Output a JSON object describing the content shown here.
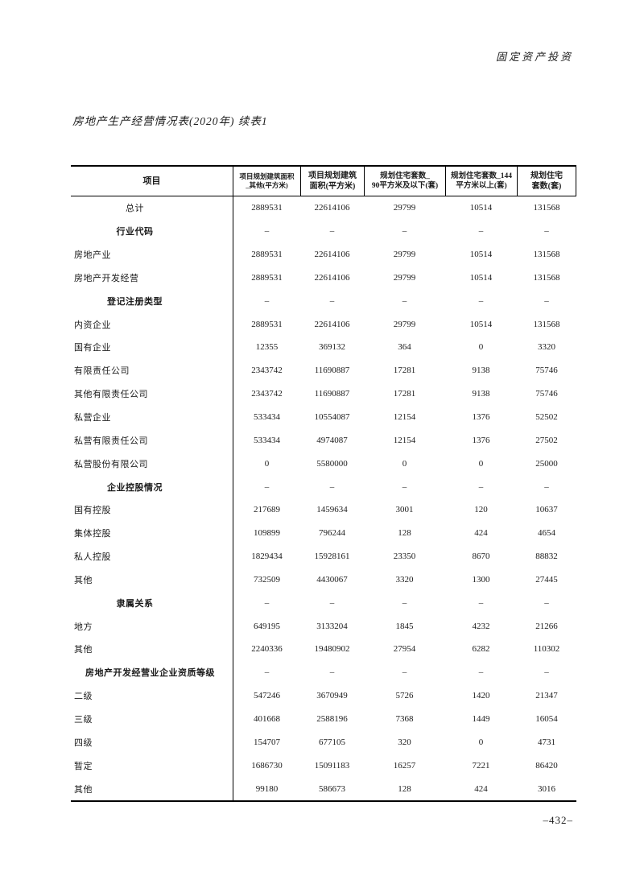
{
  "page": {
    "header_right": "固定资产投资",
    "title": "房地产生产经营情况表(2020年) 续表1",
    "page_number": "–432–"
  },
  "table": {
    "columns": [
      {
        "line1": "项目",
        "line2": ""
      },
      {
        "line1": "项目规划建筑面积",
        "line2": "_其他(平方米)"
      },
      {
        "line1": "项目规划建筑",
        "line2": "面积(平方米)"
      },
      {
        "line1": "规划住宅套数_",
        "line2": "90平方米及以下(套)"
      },
      {
        "line1": "规划住宅套数_144",
        "line2": "平方米以上(套)"
      },
      {
        "line1": "规划住宅",
        "line2": "套数(套)"
      }
    ],
    "rows": [
      {
        "label": "总计",
        "style": "center",
        "values": [
          "2889531",
          "22614106",
          "29799",
          "10514",
          "131568"
        ]
      },
      {
        "label": "行业代码",
        "style": "section",
        "values": [
          "–",
          "–",
          "–",
          "–",
          "–"
        ]
      },
      {
        "label": "房地产业",
        "style": "item",
        "values": [
          "2889531",
          "22614106",
          "29799",
          "10514",
          "131568"
        ]
      },
      {
        "label": "房地产开发经营",
        "style": "item",
        "values": [
          "2889531",
          "22614106",
          "29799",
          "10514",
          "131568"
        ]
      },
      {
        "label": "登记注册类型",
        "style": "section",
        "values": [
          "–",
          "–",
          "–",
          "–",
          "–"
        ]
      },
      {
        "label": "内资企业",
        "style": "item",
        "values": [
          "2889531",
          "22614106",
          "29799",
          "10514",
          "131568"
        ]
      },
      {
        "label": "国有企业",
        "style": "item",
        "values": [
          "12355",
          "369132",
          "364",
          "0",
          "3320"
        ]
      },
      {
        "label": "有限责任公司",
        "style": "item",
        "values": [
          "2343742",
          "11690887",
          "17281",
          "9138",
          "75746"
        ]
      },
      {
        "label": "其他有限责任公司",
        "style": "item",
        "values": [
          "2343742",
          "11690887",
          "17281",
          "9138",
          "75746"
        ]
      },
      {
        "label": "私营企业",
        "style": "item",
        "values": [
          "533434",
          "10554087",
          "12154",
          "1376",
          "52502"
        ]
      },
      {
        "label": "私营有限责任公司",
        "style": "item",
        "values": [
          "533434",
          "4974087",
          "12154",
          "1376",
          "27502"
        ]
      },
      {
        "label": "私营股份有限公司",
        "style": "item",
        "values": [
          "0",
          "5580000",
          "0",
          "0",
          "25000"
        ]
      },
      {
        "label": "企业控股情况",
        "style": "section",
        "values": [
          "–",
          "–",
          "–",
          "–",
          "–"
        ]
      },
      {
        "label": "国有控股",
        "style": "item",
        "values": [
          "217689",
          "1459634",
          "3001",
          "120",
          "10637"
        ]
      },
      {
        "label": "集体控股",
        "style": "item",
        "values": [
          "109899",
          "796244",
          "128",
          "424",
          "4654"
        ]
      },
      {
        "label": "私人控股",
        "style": "item",
        "values": [
          "1829434",
          "15928161",
          "23350",
          "8670",
          "88832"
        ]
      },
      {
        "label": "其他",
        "style": "item",
        "values": [
          "732509",
          "4430067",
          "3320",
          "1300",
          "27445"
        ]
      },
      {
        "label": "隶属关系",
        "style": "section",
        "values": [
          "–",
          "–",
          "–",
          "–",
          "–"
        ]
      },
      {
        "label": "地方",
        "style": "item",
        "values": [
          "649195",
          "3133204",
          "1845",
          "4232",
          "21266"
        ]
      },
      {
        "label": "其他",
        "style": "item",
        "values": [
          "2240336",
          "19480902",
          "27954",
          "6282",
          "110302"
        ]
      },
      {
        "label": "房地产开发经营业企业资质等级",
        "style": "section-left",
        "values": [
          "–",
          "–",
          "–",
          "–",
          "–"
        ]
      },
      {
        "label": "二级",
        "style": "item",
        "values": [
          "547246",
          "3670949",
          "5726",
          "1420",
          "21347"
        ]
      },
      {
        "label": "三级",
        "style": "item",
        "values": [
          "401668",
          "2588196",
          "7368",
          "1449",
          "16054"
        ]
      },
      {
        "label": "四级",
        "style": "item",
        "values": [
          "154707",
          "677105",
          "320",
          "0",
          "4731"
        ]
      },
      {
        "label": "暂定",
        "style": "item",
        "values": [
          "1686730",
          "15091183",
          "16257",
          "7221",
          "86420"
        ]
      },
      {
        "label": "其他",
        "style": "item",
        "values": [
          "99180",
          "586673",
          "128",
          "424",
          "3016"
        ]
      }
    ]
  }
}
